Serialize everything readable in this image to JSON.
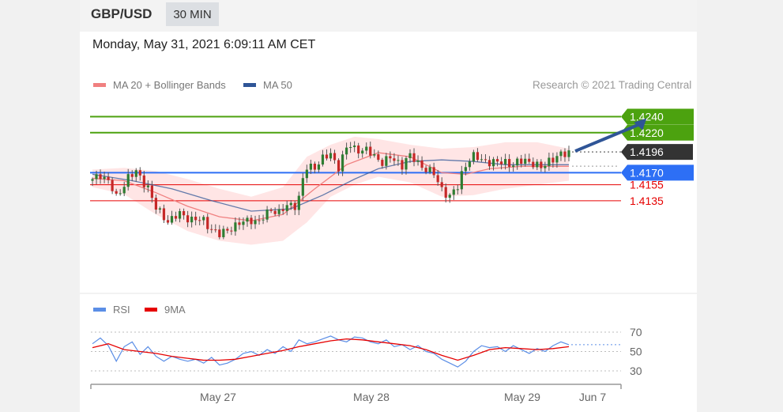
{
  "header": {
    "symbol": "GBP/USD",
    "timeframe": "30 MIN"
  },
  "timestamp": "Monday, May 31, 2021 6:09:11 AM CET",
  "credit": "Research © 2021 Trading Central",
  "colors": {
    "ma20": "#f08080",
    "bands": "#ffe1e1",
    "ma50": "#2f5597",
    "green": "#4ca20f",
    "blue": "#2d6ff5",
    "red": "#e60000",
    "dark": "#333333",
    "rsi": "#5b8ee6",
    "rsi_ma": "#e60000"
  },
  "chart_data": [
    {
      "type": "candlestick",
      "legend": [
        {
          "name": "MA 20 + Bollinger Bands",
          "color": "#f08080"
        },
        {
          "name": "MA 50",
          "color": "#2f5597"
        }
      ],
      "ylim": [
        1.40983,
        1.42524
      ],
      "levels": [
        {
          "value": 1.424,
          "label": "1.4240",
          "style": "green-box",
          "kind": "target"
        },
        {
          "value": 1.422,
          "label": "1.4220",
          "style": "green-box",
          "kind": "resistance"
        },
        {
          "value": 1.4196,
          "label": "1.4196",
          "style": "dark-box",
          "kind": "last price"
        },
        {
          "value": 1.417,
          "label": "1.4170",
          "style": "blue-box",
          "kind": "pivot"
        },
        {
          "value": 1.4155,
          "label": "1.4155",
          "style": "red-text",
          "kind": "support"
        },
        {
          "value": 1.4135,
          "label": "1.4135",
          "style": "red-text",
          "kind": "support"
        }
      ],
      "x_ticks": [
        "May 27",
        "May 28",
        "May 29",
        "Jun 7"
      ],
      "price_path": [
        [
          0,
          1.416
        ],
        [
          10,
          1.4168
        ],
        [
          20,
          1.416
        ],
        [
          30,
          1.4138
        ],
        [
          45,
          1.4165
        ],
        [
          55,
          1.417
        ],
        [
          70,
          1.4152
        ],
        [
          80,
          1.4125
        ],
        [
          95,
          1.411
        ],
        [
          110,
          1.4118
        ],
        [
          125,
          1.4112
        ],
        [
          140,
          1.411
        ],
        [
          150,
          1.41
        ],
        [
          160,
          1.4092
        ],
        [
          175,
          1.4102
        ],
        [
          190,
          1.4108
        ],
        [
          200,
          1.4112
        ],
        [
          210,
          1.4108
        ],
        [
          225,
          1.4125
        ],
        [
          235,
          1.412
        ],
        [
          248,
          1.413
        ],
        [
          258,
          1.413
        ],
        [
          268,
          1.4175
        ],
        [
          280,
          1.4178
        ],
        [
          290,
          1.4188
        ],
        [
          300,
          1.4192
        ],
        [
          310,
          1.4178
        ],
        [
          322,
          1.4205
        ],
        [
          330,
          1.42
        ],
        [
          345,
          1.4198
        ],
        [
          355,
          1.419
        ],
        [
          365,
          1.4184
        ],
        [
          375,
          1.4188
        ],
        [
          390,
          1.418
        ],
        [
          398,
          1.4192
        ],
        [
          410,
          1.4182
        ],
        [
          420,
          1.4175
        ],
        [
          430,
          1.4168
        ],
        [
          438,
          1.4152
        ],
        [
          450,
          1.414
        ],
        [
          460,
          1.4152
        ],
        [
          466,
          1.4172
        ],
        [
          472,
          1.4185
        ],
        [
          480,
          1.419
        ],
        [
          490,
          1.4186
        ],
        [
          500,
          1.4184
        ],
        [
          510,
          1.4182
        ],
        [
          520,
          1.4184
        ],
        [
          530,
          1.418
        ],
        [
          545,
          1.4186
        ],
        [
          555,
          1.4182
        ],
        [
          565,
          1.4175
        ],
        [
          575,
          1.4186
        ],
        [
          585,
          1.419
        ],
        [
          595,
          1.4193
        ],
        [
          600,
          1.4196
        ]
      ],
      "ma20_path": [
        [
          0,
          1.4163
        ],
        [
          40,
          1.416
        ],
        [
          80,
          1.4145
        ],
        [
          120,
          1.4128
        ],
        [
          160,
          1.4115
        ],
        [
          200,
          1.411
        ],
        [
          240,
          1.4118
        ],
        [
          280,
          1.415
        ],
        [
          320,
          1.418
        ],
        [
          360,
          1.4195
        ],
        [
          400,
          1.419
        ],
        [
          440,
          1.417
        ],
        [
          470,
          1.4168
        ],
        [
          500,
          1.4175
        ],
        [
          540,
          1.4178
        ],
        [
          600,
          1.4178
        ]
      ],
      "band_upper": [
        [
          0,
          1.4174
        ],
        [
          40,
          1.4176
        ],
        [
          80,
          1.4172
        ],
        [
          120,
          1.4162
        ],
        [
          160,
          1.415
        ],
        [
          200,
          1.414
        ],
        [
          240,
          1.4152
        ],
        [
          270,
          1.419
        ],
        [
          300,
          1.4205
        ],
        [
          330,
          1.4215
        ],
        [
          360,
          1.4212
        ],
        [
          400,
          1.4205
        ],
        [
          440,
          1.42
        ],
        [
          480,
          1.4202
        ],
        [
          520,
          1.4208
        ],
        [
          560,
          1.4208
        ],
        [
          600,
          1.42
        ]
      ],
      "band_lower": [
        [
          0,
          1.4152
        ],
        [
          40,
          1.4143
        ],
        [
          80,
          1.4118
        ],
        [
          120,
          1.4097
        ],
        [
          160,
          1.4085
        ],
        [
          200,
          1.408
        ],
        [
          240,
          1.4085
        ],
        [
          270,
          1.4108
        ],
        [
          300,
          1.414
        ],
        [
          330,
          1.4155
        ],
        [
          360,
          1.4165
        ],
        [
          400,
          1.4158
        ],
        [
          440,
          1.414
        ],
        [
          480,
          1.4142
        ],
        [
          520,
          1.415
        ],
        [
          560,
          1.4155
        ],
        [
          600,
          1.416
        ]
      ],
      "ma50_path": [
        [
          0,
          1.4168
        ],
        [
          50,
          1.416
        ],
        [
          100,
          1.415
        ],
        [
          150,
          1.4135
        ],
        [
          200,
          1.4122
        ],
        [
          250,
          1.4125
        ],
        [
          290,
          1.4142
        ],
        [
          330,
          1.4162
        ],
        [
          360,
          1.4175
        ],
        [
          400,
          1.4184
        ],
        [
          440,
          1.4186
        ],
        [
          480,
          1.4184
        ],
        [
          520,
          1.418
        ],
        [
          560,
          1.418
        ],
        [
          600,
          1.418
        ]
      ],
      "projection": [
        [
          604,
          1.4197
        ],
        [
          660,
          1.4238
        ]
      ]
    },
    {
      "type": "line",
      "legend": [
        {
          "name": "RSI",
          "color": "#5b8ee6"
        },
        {
          "name": "9MA",
          "color": "#e60000"
        }
      ],
      "ylim": [
        20,
        80
      ],
      "y_ticks": [
        70,
        50,
        30
      ],
      "rsi_path": [
        [
          0,
          58
        ],
        [
          10,
          64
        ],
        [
          20,
          56
        ],
        [
          30,
          40
        ],
        [
          40,
          55
        ],
        [
          50,
          60
        ],
        [
          60,
          47
        ],
        [
          70,
          55
        ],
        [
          80,
          45
        ],
        [
          90,
          40
        ],
        [
          100,
          45
        ],
        [
          110,
          42
        ],
        [
          120,
          40
        ],
        [
          130,
          42
        ],
        [
          140,
          38
        ],
        [
          150,
          44
        ],
        [
          160,
          36
        ],
        [
          170,
          38
        ],
        [
          180,
          42
        ],
        [
          190,
          48
        ],
        [
          200,
          50
        ],
        [
          210,
          46
        ],
        [
          220,
          52
        ],
        [
          230,
          48
        ],
        [
          240,
          55
        ],
        [
          250,
          50
        ],
        [
          260,
          62
        ],
        [
          270,
          58
        ],
        [
          280,
          60
        ],
        [
          290,
          63
        ],
        [
          300,
          66
        ],
        [
          310,
          62
        ],
        [
          320,
          60
        ],
        [
          330,
          65
        ],
        [
          340,
          64
        ],
        [
          350,
          60
        ],
        [
          360,
          58
        ],
        [
          370,
          62
        ],
        [
          380,
          55
        ],
        [
          390,
          57
        ],
        [
          400,
          52
        ],
        [
          410,
          56
        ],
        [
          420,
          50
        ],
        [
          430,
          48
        ],
        [
          440,
          42
        ],
        [
          450,
          38
        ],
        [
          460,
          34
        ],
        [
          470,
          40
        ],
        [
          480,
          50
        ],
        [
          490,
          56
        ],
        [
          500,
          54
        ],
        [
          510,
          55
        ],
        [
          520,
          50
        ],
        [
          530,
          56
        ],
        [
          540,
          52
        ],
        [
          550,
          48
        ],
        [
          560,
          53
        ],
        [
          570,
          50
        ],
        [
          580,
          56
        ],
        [
          590,
          60
        ],
        [
          600,
          57
        ]
      ],
      "ma9_path": [
        [
          0,
          54
        ],
        [
          20,
          58
        ],
        [
          40,
          52
        ],
        [
          60,
          50
        ],
        [
          80,
          48
        ],
        [
          100,
          45
        ],
        [
          120,
          43
        ],
        [
          140,
          41
        ],
        [
          160,
          41
        ],
        [
          180,
          42
        ],
        [
          200,
          45
        ],
        [
          220,
          48
        ],
        [
          240,
          51
        ],
        [
          260,
          55
        ],
        [
          280,
          58
        ],
        [
          300,
          61
        ],
        [
          320,
          63
        ],
        [
          340,
          62
        ],
        [
          360,
          60
        ],
        [
          380,
          58
        ],
        [
          400,
          56
        ],
        [
          420,
          52
        ],
        [
          440,
          46
        ],
        [
          460,
          41
        ],
        [
          480,
          46
        ],
        [
          500,
          52
        ],
        [
          520,
          54
        ],
        [
          540,
          53
        ],
        [
          560,
          52
        ],
        [
          580,
          53
        ],
        [
          600,
          55
        ]
      ]
    }
  ]
}
